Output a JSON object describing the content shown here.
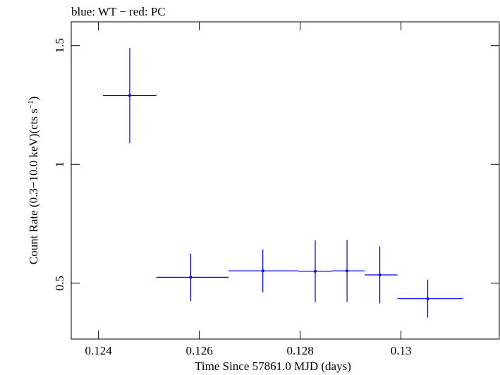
{
  "chart_data": {
    "type": "scatter",
    "title": "blue: WT − red: PC",
    "xlabel": "Time Since 57861.0 MJD (days)",
    "ylabel_main": "Count Rate (0.3−10.0 keV)(cts s",
    "ylabel_sup": "−1",
    "ylabel_close": ")",
    "xlim": [
      0.12346,
      0.13195
    ],
    "ylim": [
      0.265,
      1.6
    ],
    "xticks": [
      {
        "value": 0.124,
        "label": "0.124"
      },
      {
        "value": 0.126,
        "label": "0.126"
      },
      {
        "value": 0.128,
        "label": "0.128"
      },
      {
        "value": 0.13,
        "label": "0.13"
      }
    ],
    "yticks": [
      {
        "value": 0.5,
        "label": "0.5"
      },
      {
        "value": 1.0,
        "label": "1"
      },
      {
        "value": 1.5,
        "label": "1.5"
      }
    ],
    "series": [
      {
        "color": "#0000ff",
        "points": [
          {
            "x": 0.12462,
            "x_lo": 0.12515,
            "x_hi": 0.12515,
            "y": 1.29,
            "y_err": 0.2
          },
          {
            "x": 0.12583,
            "x_lo": 0.12515,
            "x_hi": 0.12658,
            "y": 0.525,
            "y_err": 0.1
          },
          {
            "x": 0.12726,
            "x_lo": 0.12658,
            "x_hi": 0.12797,
            "y": 0.552,
            "y_err": 0.09
          },
          {
            "x": 0.1283,
            "x_lo": 0.12797,
            "x_hi": 0.12863,
            "y": 0.55,
            "y_err": 0.13
          },
          {
            "x": 0.12893,
            "x_lo": 0.12863,
            "x_hi": 0.12928,
            "y": 0.552,
            "y_err": 0.13
          },
          {
            "x": 0.12958,
            "x_lo": 0.12928,
            "x_hi": 0.12993,
            "y": 0.535,
            "y_err": 0.12
          },
          {
            "x": 0.13053,
            "x_lo": 0.12993,
            "x_hi": 0.13123,
            "y": 0.435,
            "y_err": 0.08
          }
        ]
      }
    ]
  }
}
